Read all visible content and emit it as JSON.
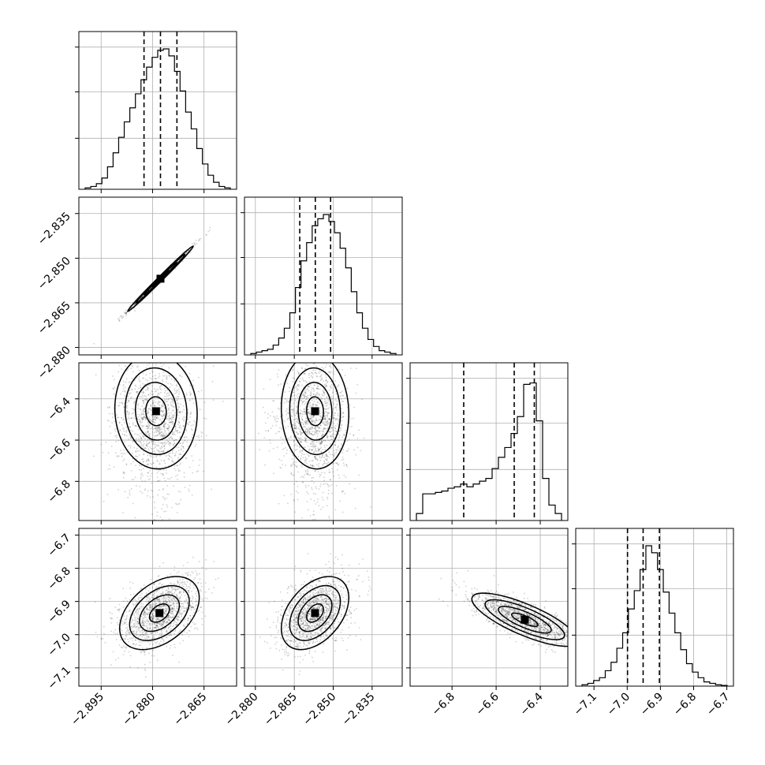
{
  "chart_data": {
    "type": "corner",
    "title": "",
    "parameters": [
      {
        "index": 0,
        "range": [
          -2.9015,
          -2.8555
        ],
        "ticks": [
          -2.895,
          -2.88,
          -2.865
        ],
        "tick_labels": [
          "−2.895",
          "−2.880",
          "−2.865"
        ]
      },
      {
        "index": 1,
        "range": [
          -2.8842,
          -2.8234
        ],
        "ticks": [
          -2.88,
          -2.865,
          -2.85,
          -2.835
        ],
        "tick_labels": [
          "−2.880",
          "−2.865",
          "−2.850",
          "−2.835"
        ]
      },
      {
        "index": 2,
        "range": [
          -6.99,
          -6.275
        ],
        "ticks": [
          -6.8,
          -6.6,
          -6.4
        ],
        "tick_labels": [
          "−6.8",
          "−6.6",
          "−6.4"
        ],
        "y_ticks": [
          -6.8,
          -6.6,
          -6.4
        ],
        "y_tick_labels": [
          "−6.8",
          "−6.6",
          "−6.4"
        ]
      },
      {
        "index": 3,
        "range": [
          -7.155,
          -6.68
        ],
        "ticks": [
          -7.1,
          -7.0,
          -6.9,
          -6.8,
          -6.7
        ],
        "tick_labels": [
          "−7.1",
          "−7.0",
          "−6.9",
          "−6.8",
          "−6.7"
        ]
      }
    ],
    "y_ticks_row1": {
      "range": [
        -2.8825,
        -2.8295
      ],
      "ticks": [
        -2.88,
        -2.865,
        -2.85,
        -2.835
      ],
      "tick_labels": [
        "−2.880",
        "−2.865",
        "−2.850",
        "−2.835"
      ]
    },
    "y_ticks_row2": {
      "range": [
        -6.99,
        -6.225
      ],
      "ticks": [
        -6.8,
        -6.6,
        -6.4
      ],
      "tick_labels": [
        "−6.8",
        "−6.6",
        "−6.4"
      ]
    },
    "y_ticks_row3": {
      "range": [
        -7.155,
        -6.68
      ],
      "ticks": [
        -7.1,
        -7.0,
        -6.9,
        -6.8,
        -6.7
      ],
      "tick_labels": [
        "−7.1",
        "−7.0",
        "−6.9",
        "−6.8",
        "−6.7"
      ]
    },
    "histograms": [
      {
        "param": 0,
        "quantiles": [
          -2.8825,
          -2.8777,
          -2.8729
        ],
        "counts": [
          0.01,
          0.02,
          0.04,
          0.08,
          0.16,
          0.26,
          0.37,
          0.48,
          0.58,
          0.68,
          0.78,
          0.87,
          0.94,
          0.99,
          1.0,
          0.95,
          0.84,
          0.7,
          0.55,
          0.43,
          0.29,
          0.18,
          0.1,
          0.05,
          0.02,
          0.01
        ]
      },
      {
        "param": 1,
        "quantiles": [
          -2.8629,
          -2.8569,
          -2.851
        ],
        "counts": [
          0.01,
          0.02,
          0.03,
          0.04,
          0.07,
          0.12,
          0.19,
          0.3,
          0.48,
          0.67,
          0.8,
          0.92,
          0.97,
          1.0,
          0.95,
          0.87,
          0.76,
          0.62,
          0.45,
          0.3,
          0.19,
          0.11,
          0.06,
          0.03,
          0.02,
          0.01
        ]
      },
      {
        "param": 2,
        "quantiles": [
          -6.747,
          -6.518,
          -6.427
        ],
        "counts": [
          0.05,
          0.19,
          0.19,
          0.2,
          0.21,
          0.23,
          0.24,
          0.26,
          0.24,
          0.26,
          0.28,
          0.3,
          0.37,
          0.45,
          0.52,
          0.62,
          0.74,
          0.97,
          0.98,
          0.71,
          0.3,
          0.11,
          0.05
        ]
      },
      {
        "param": 3,
        "quantiles": [
          -6.999,
          -6.952,
          -6.903
        ],
        "counts": [
          0.01,
          0.02,
          0.04,
          0.06,
          0.11,
          0.17,
          0.27,
          0.38,
          0.55,
          0.68,
          0.83,
          1.0,
          0.95,
          0.83,
          0.67,
          0.52,
          0.38,
          0.26,
          0.16,
          0.1,
          0.06,
          0.03,
          0.02,
          0.01,
          0.005
        ]
      }
    ],
    "pairs": [
      {
        "x_param": 0,
        "y_param": 1,
        "mean": [
          -2.8777,
          -2.8569
        ],
        "sd": [
          0.0048,
          0.0055
        ],
        "corr": 0.995
      },
      {
        "x_param": 0,
        "y_param": 2,
        "mean": [
          -2.879,
          -6.46
        ],
        "sd": [
          0.006,
          0.14
        ],
        "corr": -0.05
      },
      {
        "x_param": 1,
        "y_param": 2,
        "mean": [
          -2.857,
          -6.46
        ],
        "sd": [
          0.0065,
          0.14
        ],
        "corr": -0.05
      },
      {
        "x_param": 0,
        "y_param": 3,
        "mean": [
          -2.878,
          -6.935
        ],
        "sd": [
          0.0058,
          0.055
        ],
        "corr": 0.42
      },
      {
        "x_param": 1,
        "y_param": 3,
        "mean": [
          -2.857,
          -6.935
        ],
        "sd": [
          0.0065,
          0.055
        ],
        "corr": 0.42
      },
      {
        "x_param": 2,
        "y_param": 3,
        "mean": [
          -6.47,
          -6.955
        ],
        "sd": [
          0.12,
          0.04
        ],
        "corr": -0.78
      }
    ],
    "grid": true
  }
}
